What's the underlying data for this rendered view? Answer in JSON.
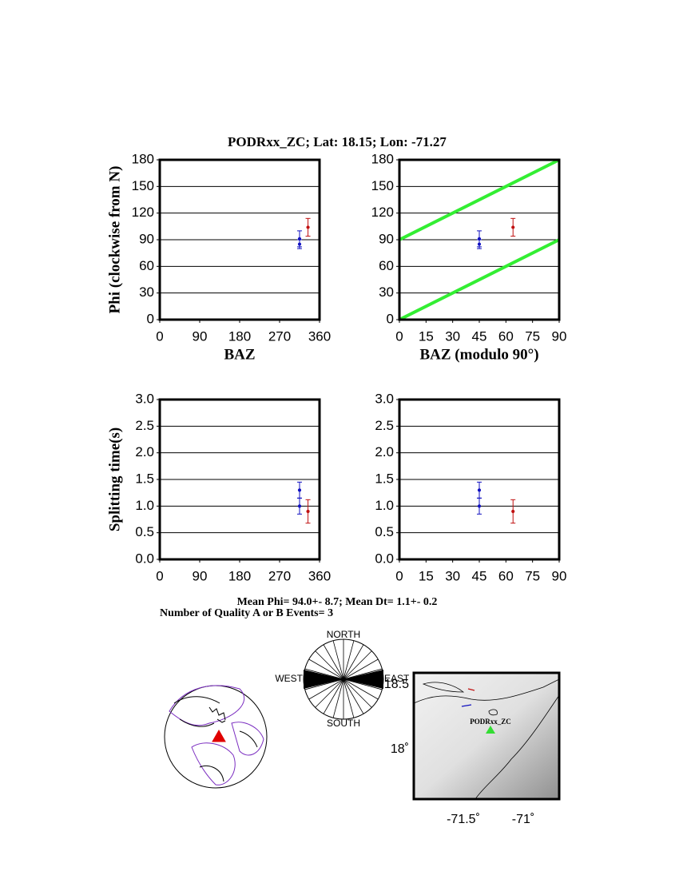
{
  "title": "PODRxx_ZC; Lat:  18.15;  Lon:  -71.27",
  "chart_data": [
    {
      "type": "errorbar",
      "ylabel": "Phi (clockwise from N)",
      "xlabel": "BAZ",
      "xlim": [
        0,
        360
      ],
      "xticks": [
        0,
        90,
        180,
        270,
        360
      ],
      "ylim": [
        0,
        180
      ],
      "yticks": [
        0,
        30,
        60,
        90,
        120,
        150,
        180
      ],
      "grid": true,
      "series": [
        {
          "color": "#1010c0",
          "x": [
            315,
            315
          ],
          "values": [
            91,
            85
          ],
          "errors": [
            9,
            5
          ]
        },
        {
          "color": "#c01010",
          "x": [
            334
          ],
          "values": [
            104
          ],
          "errors": [
            10
          ]
        }
      ]
    },
    {
      "type": "errorbar",
      "xlabel": "BAZ (modulo 90°)",
      "xlim": [
        0,
        90
      ],
      "xticks": [
        0,
        15,
        30,
        45,
        60,
        75,
        90
      ],
      "ylim": [
        0,
        180
      ],
      "yticks": [
        0,
        30,
        60,
        90,
        120,
        150,
        180
      ],
      "grid": true,
      "series": [
        {
          "color": "#1010c0",
          "x": [
            45,
            45
          ],
          "values": [
            91,
            85
          ],
          "errors": [
            9,
            5
          ]
        },
        {
          "color": "#c01010",
          "x": [
            64
          ],
          "values": [
            104
          ],
          "errors": [
            10
          ]
        }
      ],
      "lines": [
        {
          "color": "#33ee33",
          "x": [
            0,
            90
          ],
          "values": [
            90,
            180
          ]
        },
        {
          "color": "#33ee33",
          "x": [
            0,
            90
          ],
          "values": [
            0,
            90
          ]
        }
      ]
    },
    {
      "type": "errorbar",
      "ylabel": "Splitting time(s)",
      "xlim": [
        0,
        360
      ],
      "xticks": [
        0,
        90,
        180,
        270,
        360
      ],
      "ylim": [
        0,
        3
      ],
      "yticks": [
        {
          "value": 0,
          "label": "0.0"
        },
        0.5,
        {
          "value": 1,
          "label": "1.0"
        },
        1.5,
        {
          "value": 2,
          "label": "2.0"
        },
        2.5,
        {
          "value": 3,
          "label": "3.0"
        }
      ],
      "grid": true,
      "series": [
        {
          "color": "#1010c0",
          "x": [
            315,
            315
          ],
          "values": [
            1.3,
            1.0
          ],
          "errors": [
            0.15,
            0.15
          ]
        },
        {
          "color": "#c01010",
          "x": [
            334
          ],
          "values": [
            0.9
          ],
          "errors": [
            0.22
          ]
        }
      ]
    },
    {
      "type": "errorbar",
      "xlim": [
        0,
        90
      ],
      "xticks": [
        0,
        15,
        30,
        45,
        60,
        75,
        90
      ],
      "ylim": [
        0,
        3
      ],
      "yticks": [
        {
          "value": 0,
          "label": "0.0"
        },
        0.5,
        {
          "value": 1,
          "label": "1.0"
        },
        1.5,
        {
          "value": 2,
          "label": "2.0"
        },
        2.5,
        {
          "value": 3,
          "label": "3.0"
        }
      ],
      "grid": true,
      "series": [
        {
          "color": "#1010c0",
          "x": [
            45,
            45
          ],
          "values": [
            1.3,
            1.0
          ],
          "errors": [
            0.15,
            0.15
          ]
        },
        {
          "color": "#c01010",
          "x": [
            64
          ],
          "values": [
            0.9
          ],
          "errors": [
            0.22
          ]
        }
      ]
    }
  ],
  "summary": {
    "mean": "Mean Phi= 94.0+-  8.7; Mean Dt=  1.1+-  0.2",
    "count": "Number of Quality A or B Events=  3"
  },
  "rose": {
    "north": "NORTH",
    "west": "WEST",
    "east": "EAST",
    "south": "SOUTH"
  },
  "map": {
    "lat_top": "18.5",
    "lat_mid": "18˚",
    "lon_left": "-71.5˚",
    "lon_right": "-71˚",
    "station": "PODRxx_ZC"
  }
}
